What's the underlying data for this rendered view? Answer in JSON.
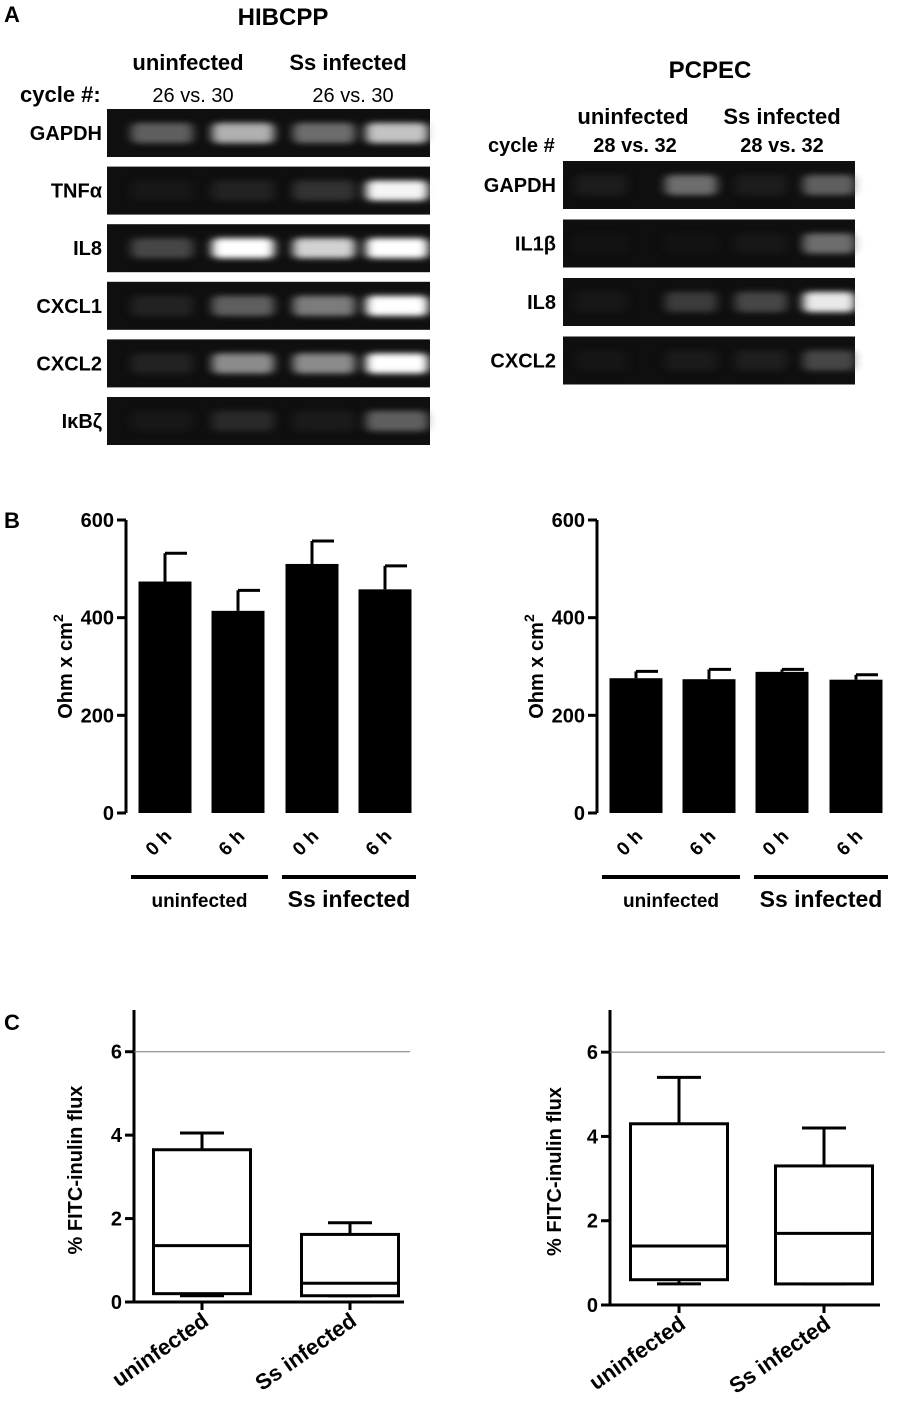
{
  "panel_labels": {
    "a": "A",
    "b": "B",
    "c": "C"
  },
  "gel_left": {
    "title": "HIBCPP",
    "group1": "uninfected",
    "group2": "Ss infected",
    "cycle_label": "cycle #:",
    "cycles1": "26 vs. 30",
    "cycles2": "26 vs. 30",
    "rows": [
      {
        "label": "GAPDH",
        "intensity": [
          0.45,
          0.7,
          0.5,
          0.75
        ]
      },
      {
        "label": "TNFα",
        "intensity": [
          0.05,
          0.15,
          0.25,
          0.95
        ]
      },
      {
        "label": "IL8",
        "intensity": [
          0.35,
          1.0,
          0.8,
          1.0
        ]
      },
      {
        "label": "CXCL1",
        "intensity": [
          0.15,
          0.45,
          0.55,
          1.0
        ]
      },
      {
        "label": "CXCL2",
        "intensity": [
          0.15,
          0.6,
          0.6,
          1.0
        ]
      },
      {
        "label": "IκBζ",
        "intensity": [
          0.05,
          0.2,
          0.08,
          0.45
        ]
      }
    ]
  },
  "gel_right": {
    "title": "PCPEC",
    "group1": "uninfected",
    "group2": "Ss infected",
    "cycle_label": "cycle #",
    "cycles1": "28 vs. 32",
    "cycles2": "28 vs. 32",
    "rows": [
      {
        "label": "GAPDH",
        "intensity": [
          0.1,
          0.5,
          0.1,
          0.45
        ]
      },
      {
        "label": "IL1β",
        "intensity": [
          0.0,
          0.0,
          0.05,
          0.5
        ]
      },
      {
        "label": "IL8",
        "intensity": [
          0.05,
          0.3,
          0.35,
          0.9
        ]
      },
      {
        "label": "CXCL2",
        "intensity": [
          0.03,
          0.08,
          0.12,
          0.35
        ]
      }
    ]
  },
  "chart_data": [
    {
      "type": "bar",
      "ylabel": "Ohm x cm",
      "ylabel_sup": "2",
      "categories": [
        "0 h",
        "6 h",
        "0 h",
        "6 h"
      ],
      "values": [
        474,
        414,
        510,
        458
      ],
      "errors": [
        58,
        42,
        47,
        48
      ],
      "ylim": [
        0,
        600
      ],
      "yticks": [
        0,
        200,
        400,
        600
      ],
      "groups": [
        "uninfected",
        "Ss infected"
      ]
    },
    {
      "type": "bar",
      "ylabel": "Ohm x cm",
      "ylabel_sup": "2",
      "categories": [
        "0 h",
        "6 h",
        "0 h",
        "6 h"
      ],
      "values": [
        276,
        274,
        289,
        273
      ],
      "errors": [
        14,
        20,
        5,
        10
      ],
      "ylim": [
        0,
        600
      ],
      "yticks": [
        0,
        200,
        400,
        600
      ],
      "groups": [
        "uninfected",
        "Ss infected"
      ]
    },
    {
      "type": "box",
      "ylabel": "% FITC-inulin flux",
      "categories": [
        "uninfected",
        "Ss infected"
      ],
      "boxes": [
        {
          "min": 0.15,
          "q1": 0.2,
          "median": 1.35,
          "q3": 3.65,
          "max": 4.05
        },
        {
          "min": 0.15,
          "q1": 0.15,
          "median": 0.45,
          "q3": 1.62,
          "max": 1.9
        }
      ],
      "ylim": [
        0,
        7
      ],
      "yticks": [
        0,
        2,
        4,
        6
      ],
      "reference_line": 6
    },
    {
      "type": "box",
      "ylabel": "% FITC-inulin flux",
      "categories": [
        "uninfected",
        "Ss infected"
      ],
      "boxes": [
        {
          "min": 0.5,
          "q1": 0.6,
          "median": 1.4,
          "q3": 4.3,
          "max": 5.4
        },
        {
          "min": 0.5,
          "q1": 0.5,
          "median": 1.7,
          "q3": 3.3,
          "max": 4.2
        }
      ],
      "ylim": [
        0,
        7
      ],
      "yticks": [
        0,
        2,
        4,
        6
      ],
      "reference_line": 6
    }
  ]
}
